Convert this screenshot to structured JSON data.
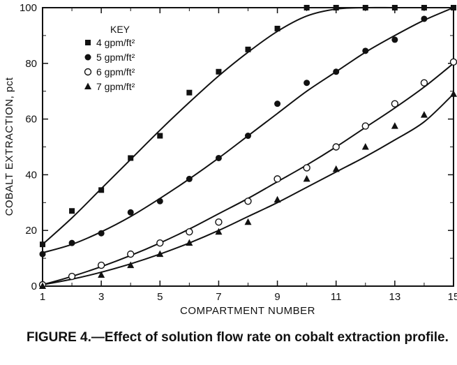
{
  "chart_data": {
    "type": "scatter",
    "xlabel": "COMPARTMENT NUMBER",
    "ylabel": "COBALT EXTRACTION, pct",
    "xlim": [
      1,
      15
    ],
    "ylim": [
      0,
      100
    ],
    "xticks": [
      1,
      3,
      5,
      7,
      9,
      11,
      13,
      15
    ],
    "yticks": [
      0,
      20,
      40,
      60,
      80,
      100
    ],
    "legend_title": "KEY",
    "legend_position": "top-left",
    "series": [
      {
        "name": "4 gpm/ft²",
        "marker": "square",
        "x": [
          1,
          2,
          3,
          4,
          5,
          6,
          7,
          8,
          9,
          10,
          11,
          12,
          13,
          14,
          15
        ],
        "y": [
          15,
          27,
          34.5,
          46,
          54,
          69.5,
          77,
          85,
          92.5,
          100,
          100,
          100,
          100,
          100,
          100
        ],
        "curve": [
          15,
          24.5,
          35,
          45.5,
          56,
          66,
          75.5,
          84,
          91.5,
          97,
          99.5,
          100,
          100,
          100,
          100
        ]
      },
      {
        "name": "5 gpm/ft²",
        "marker": "filled-circle",
        "x": [
          1,
          2,
          3,
          4,
          5,
          6,
          7,
          8,
          9,
          10,
          11,
          12,
          13,
          14
        ],
        "y": [
          11.5,
          15.5,
          19,
          26.5,
          30.5,
          38.5,
          46,
          54,
          65.5,
          73,
          77,
          84.5,
          88.5,
          96
        ],
        "curve": [
          12,
          15,
          19.5,
          25,
          31.5,
          38.5,
          46,
          54,
          62,
          70,
          77,
          84,
          90,
          95.5,
          100
        ]
      },
      {
        "name": "6 gpm/ft²",
        "marker": "open-circle",
        "x": [
          1,
          2,
          3,
          4,
          5,
          6,
          7,
          8,
          9,
          10,
          11,
          12,
          13,
          14,
          15
        ],
        "y": [
          0.5,
          3.5,
          7.5,
          11.5,
          15.5,
          19.5,
          23,
          30.5,
          38.5,
          42.5,
          50,
          57.5,
          65.5,
          73,
          80.5
        ],
        "curve": [
          0.5,
          3.5,
          7,
          11,
          15.5,
          20.5,
          26,
          31.5,
          37.5,
          43.5,
          50,
          57,
          64,
          71.5,
          80
        ]
      },
      {
        "name": "7 gpm/ft²",
        "marker": "triangle",
        "x": [
          1,
          3,
          4,
          5,
          6,
          7,
          8,
          9,
          10,
          11,
          12,
          13,
          14,
          15
        ],
        "y": [
          0,
          4,
          7.5,
          11.5,
          15.5,
          19.5,
          23,
          31,
          38.5,
          42,
          50,
          57.5,
          61.5,
          69
        ],
        "curve": [
          0.5,
          2.5,
          5,
          8,
          11.5,
          15.5,
          20,
          25,
          30,
          35.5,
          41,
          46.5,
          52.5,
          59,
          69
        ]
      }
    ],
    "caption_label": "FIGURE 4.",
    "caption_dash": "—",
    "caption_text": "Effect of solution flow rate on cobalt extraction profile."
  }
}
